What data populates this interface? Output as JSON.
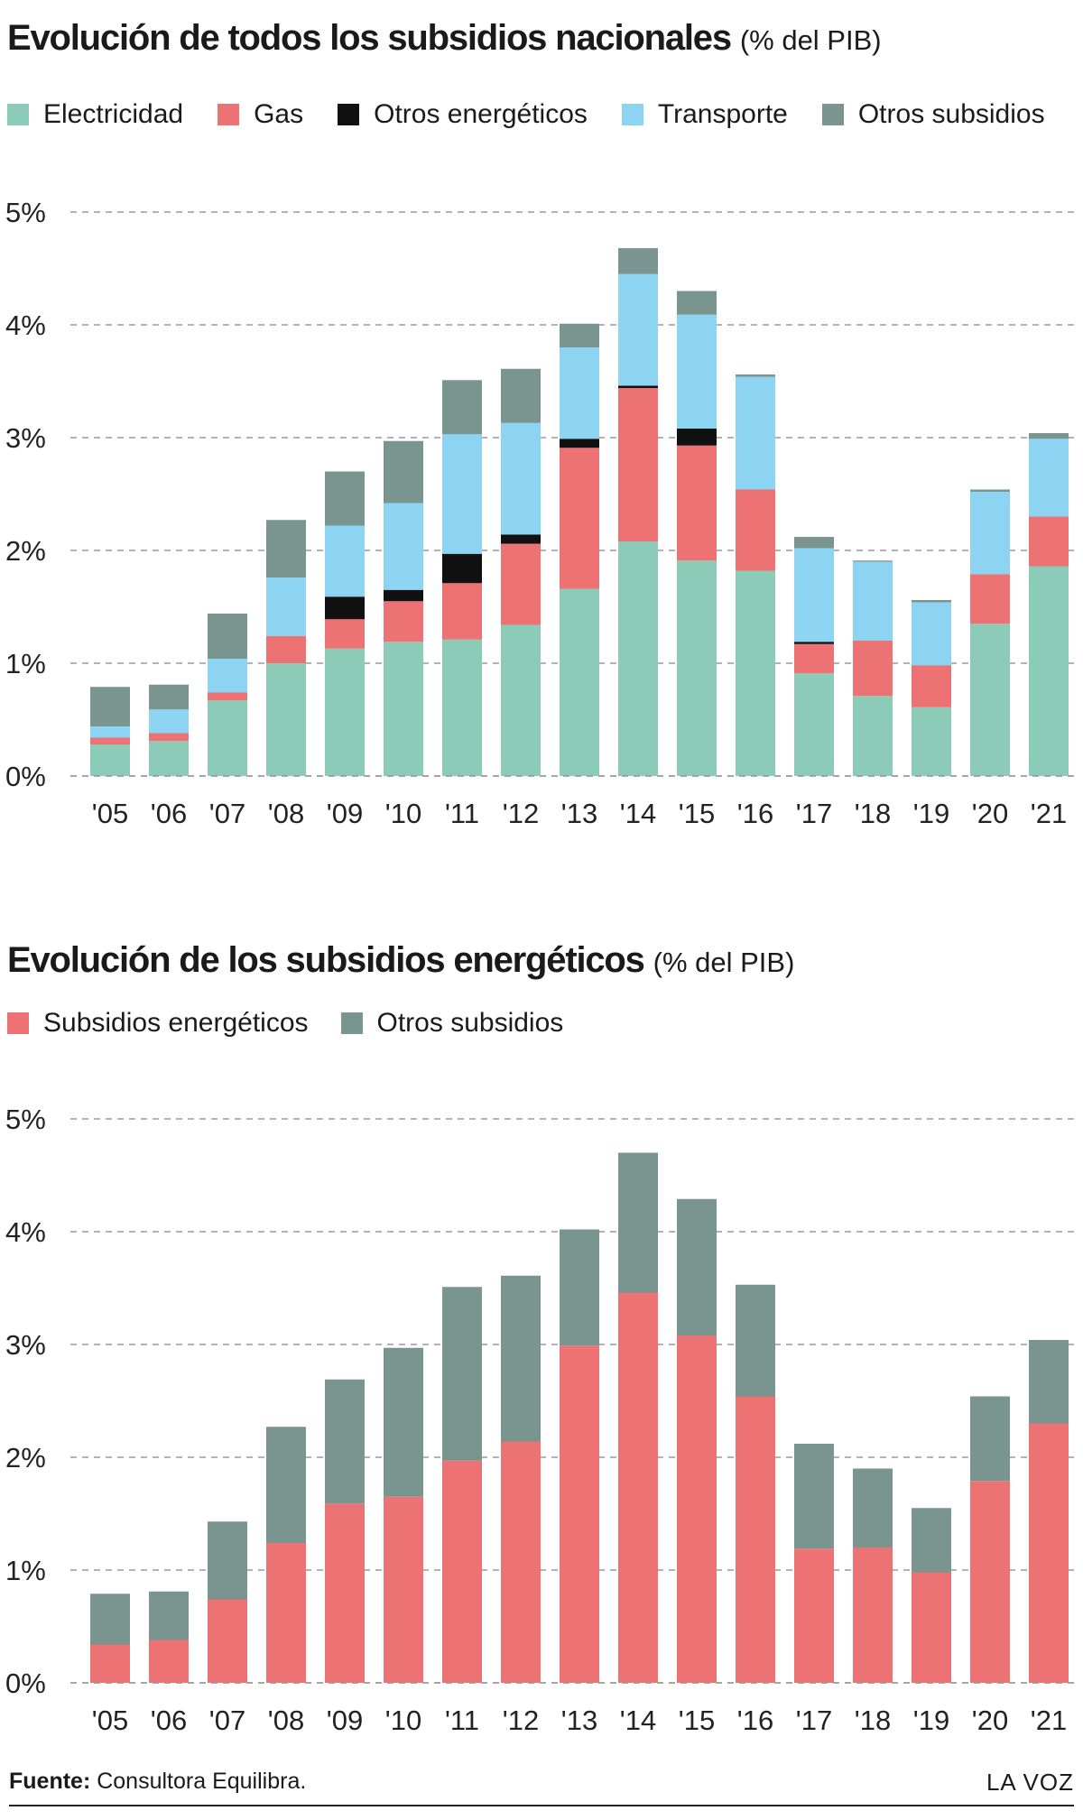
{
  "chart_data": [
    {
      "type": "bar",
      "stacked": true,
      "title": "Evolución de todos los subsidios nacionales",
      "title_unit": "(% del PIB)",
      "categories": [
        "'05",
        "'06",
        "'07",
        "'08",
        "'09",
        "'10",
        "'11",
        "'12",
        "'13",
        "'14",
        "'15",
        "'16",
        "'17",
        "'18",
        "'19",
        "'20",
        "'21"
      ],
      "series": [
        {
          "name": "Electricidad",
          "color": "#8ccbb8",
          "values": [
            0.28,
            0.31,
            0.67,
            1.0,
            1.13,
            1.19,
            1.21,
            1.34,
            1.66,
            2.08,
            1.91,
            1.82,
            0.91,
            0.71,
            0.61,
            1.35,
            1.86
          ]
        },
        {
          "name": "Gas",
          "color": "#ec7273",
          "values": [
            0.06,
            0.07,
            0.07,
            0.24,
            0.26,
            0.36,
            0.5,
            0.72,
            1.25,
            1.36,
            1.02,
            0.72,
            0.26,
            0.49,
            0.37,
            0.44,
            0.44
          ]
        },
        {
          "name": "Otros energéticos",
          "color": "#111111",
          "values": [
            0,
            0,
            0,
            0,
            0.2,
            0.1,
            0.26,
            0.08,
            0.08,
            0.02,
            0.15,
            0,
            0.02,
            0,
            0,
            0,
            0
          ]
        },
        {
          "name": "Transporte",
          "color": "#8dd3f2",
          "values": [
            0.1,
            0.21,
            0.3,
            0.52,
            0.63,
            0.77,
            1.06,
            0.99,
            0.81,
            0.99,
            1.01,
            1.0,
            0.83,
            0.7,
            0.56,
            0.73,
            0.69
          ]
        },
        {
          "name": "Otros subsidios",
          "color": "#7a948f",
          "values": [
            0.35,
            0.22,
            0.4,
            0.51,
            0.48,
            0.55,
            0.48,
            0.48,
            0.21,
            0.23,
            0.21,
            0.02,
            0.1,
            0.01,
            0.02,
            0.02,
            0.05
          ]
        }
      ],
      "yticks": [
        "0%",
        "1%",
        "2%",
        "3%",
        "4%",
        "5%"
      ],
      "ylim": [
        0,
        5
      ],
      "grid": true,
      "legend_position": "top"
    },
    {
      "type": "bar",
      "stacked": true,
      "title": "Evolución de los subsidios energéticos",
      "title_unit": "(% del PIB)",
      "categories": [
        "'05",
        "'06",
        "'07",
        "'08",
        "'09",
        "'10",
        "'11",
        "'12",
        "'13",
        "'14",
        "'15",
        "'16",
        "'17",
        "'18",
        "'19",
        "'20",
        "'21"
      ],
      "series": [
        {
          "name": "Subsidios energéticos",
          "color": "#ec7273",
          "values": [
            0.34,
            0.38,
            0.74,
            1.24,
            1.59,
            1.65,
            1.97,
            2.14,
            2.99,
            3.46,
            3.08,
            2.54,
            1.19,
            1.2,
            0.98,
            1.79,
            2.3
          ]
        },
        {
          "name": "Otros subsidios",
          "color": "#7a948f",
          "values": [
            0.45,
            0.43,
            0.69,
            1.03,
            1.1,
            1.32,
            1.54,
            1.47,
            1.03,
            1.24,
            1.21,
            0.99,
            0.93,
            0.7,
            0.57,
            0.75,
            0.74
          ]
        }
      ],
      "yticks": [
        "0%",
        "1%",
        "2%",
        "3%",
        "4%",
        "5%"
      ],
      "ylim": [
        0,
        5
      ],
      "grid": true,
      "legend_position": "top"
    }
  ],
  "footer": {
    "source_label": "Fuente:",
    "source_text": " Consultora Equilibra.",
    "brand": "LA VOZ"
  }
}
